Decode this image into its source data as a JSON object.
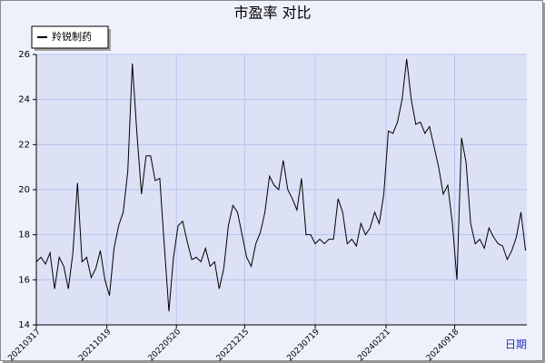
{
  "chart_data": {
    "type": "line",
    "title": "市盈率  对比",
    "x_label": "日期",
    "x": [
      "20210317",
      "20210331",
      "20210414",
      "20210428",
      "20210512",
      "20210526",
      "20210609",
      "20210623",
      "20210707",
      "20210721",
      "20210804",
      "20210818",
      "20210901",
      "20210915",
      "20210929",
      "20211013",
      "20211027",
      "20211110",
      "20211124",
      "20211208",
      "20211222",
      "20220105",
      "20220119",
      "20220202",
      "20220216",
      "20220302",
      "20220316",
      "20220330",
      "20220413",
      "20220427",
      "20220511",
      "20220525",
      "20220608",
      "20220622",
      "20220706",
      "20220720",
      "20220803",
      "20220817",
      "20220831",
      "20220914",
      "20220928",
      "20221012",
      "20221026",
      "20221109",
      "20221123",
      "20221207",
      "20221221",
      "20230104",
      "20230118",
      "20230201",
      "20230215",
      "20230301",
      "20230315",
      "20230329",
      "20230412",
      "20230426",
      "20230510",
      "20230524",
      "20230607",
      "20230621",
      "20230705",
      "20230719",
      "20230802",
      "20230816",
      "20230830",
      "20230913",
      "20230927",
      "20231011",
      "20231025",
      "20231108",
      "20231122",
      "20231206",
      "20231220",
      "20240103",
      "20240117",
      "20240131",
      "20240214",
      "20240228",
      "20240313",
      "20240327",
      "20240410",
      "20240424",
      "20240508",
      "20240522",
      "20240605",
      "20240619",
      "20240703",
      "20240717",
      "20240731",
      "20240814",
      "20240828",
      "20240911",
      "20240925",
      "20241009",
      "20241023",
      "20241106",
      "20241120",
      "20241204",
      "20241218",
      "20250101",
      "20250115",
      "20250129",
      "20250212",
      "20250226",
      "20250312",
      "20250326",
      "20250409",
      "20250423"
    ],
    "series": [
      {
        "name": "羚锐制药",
        "color": "#000000",
        "values": [
          16.8,
          17.0,
          16.7,
          17.2,
          15.6,
          17.0,
          16.6,
          15.6,
          17.2,
          20.3,
          16.8,
          17.0,
          16.1,
          16.5,
          17.3,
          16.0,
          15.3,
          17.4,
          18.4,
          19.0,
          20.8,
          25.6,
          22.5,
          19.8,
          21.5,
          21.5,
          20.4,
          20.5,
          17.5,
          14.6,
          17.0,
          18.4,
          18.6,
          17.7,
          16.9,
          17.0,
          16.8,
          17.4,
          16.6,
          16.8,
          15.6,
          16.5,
          18.4,
          19.3,
          19.0,
          18.0,
          17.0,
          16.6,
          17.6,
          18.1,
          19.0,
          20.6,
          20.2,
          20.0,
          21.3,
          20.0,
          19.6,
          19.1,
          20.5,
          18.0,
          18.0,
          17.6,
          17.8,
          17.6,
          17.8,
          17.8,
          19.6,
          19.0,
          17.6,
          17.8,
          17.5,
          18.5,
          18.0,
          18.3,
          19.0,
          18.5,
          19.8,
          22.6,
          22.5,
          23.0,
          24.0,
          25.8,
          24.0,
          22.9,
          23.0,
          22.5,
          22.8,
          21.9,
          21.0,
          19.8,
          20.2,
          18.5,
          16.0,
          22.3,
          21.2,
          18.5,
          17.6,
          17.8,
          17.4,
          18.3,
          17.9,
          17.6,
          17.5,
          16.9,
          17.3,
          17.9,
          19.0,
          17.3
        ]
      }
    ],
    "xlim": [
      "20210317",
      "20250427"
    ],
    "xticks": [
      "20210317",
      "20211019",
      "20220520",
      "20221215",
      "20230719",
      "20240221",
      "20240918"
    ],
    "ylim": [
      14,
      26
    ],
    "yticks": [
      14,
      16,
      18,
      20,
      22,
      24,
      26
    ],
    "grid": true,
    "legend": "top-left"
  }
}
